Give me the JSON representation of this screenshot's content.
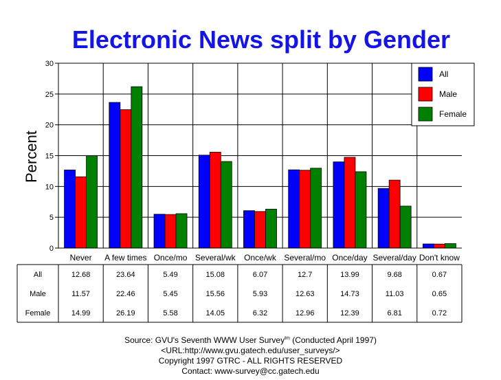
{
  "chart_data": {
    "type": "bar",
    "title": "Electronic News split by Gender",
    "ylabel": "Percent",
    "ylim": [
      0,
      30
    ],
    "yticks": [
      0,
      5,
      10,
      15,
      20,
      25,
      30
    ],
    "grid": true,
    "legend_position": "top-right",
    "categories": [
      "Never",
      "A few times",
      "Once/mo",
      "Several/wk",
      "Once/wk",
      "Several/mo",
      "Once/day",
      "Several/day",
      "Don't know"
    ],
    "series": [
      {
        "name": "All",
        "color": "#0000ff",
        "values": [
          12.68,
          23.64,
          5.49,
          15.08,
          6.07,
          12.7,
          13.99,
          9.68,
          0.67
        ],
        "labels": [
          "12.68",
          "23.64",
          "5.49",
          "15.08",
          "6.07",
          "12.7",
          "13.99",
          "9.68",
          "0.67"
        ]
      },
      {
        "name": "Male",
        "color": "#ff0000",
        "values": [
          11.57,
          22.46,
          5.45,
          15.56,
          5.93,
          12.63,
          14.73,
          11.03,
          0.65
        ],
        "labels": [
          "11.57",
          "22.46",
          "5.45",
          "15.56",
          "5.93",
          "12.63",
          "14.73",
          "11.03",
          "0.65"
        ]
      },
      {
        "name": "Female",
        "color": "#008000",
        "values": [
          14.99,
          26.19,
          5.58,
          14.05,
          6.32,
          12.96,
          12.39,
          6.81,
          0.72
        ],
        "labels": [
          "14.99",
          "26.19",
          "5.58",
          "14.05",
          "6.32",
          "12.96",
          "12.39",
          "6.81",
          "0.72"
        ]
      }
    ]
  },
  "footer": {
    "source_prefix": "Source: GVU's Seventh WWW User Survey",
    "source_tm": "tm",
    "source_suffix": " (Conducted April 1997)",
    "url": "<URL:http://www.gvu.gatech.edu/user_surveys/>",
    "copyright": "Copyright 1997 GTRC - ALL RIGHTS RESERVED",
    "contact": "Contact: www-survey@cc.gatech.edu"
  }
}
